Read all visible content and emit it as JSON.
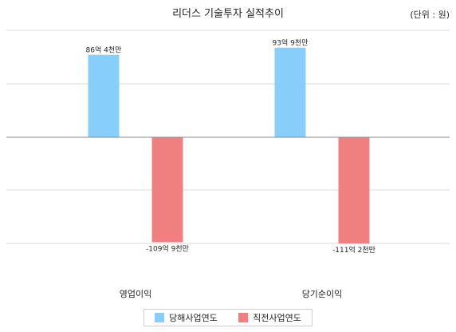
{
  "title": "리더스 기술투자 실적추이",
  "unit_label": "(단위 : 원)",
  "colors": {
    "current": "#87CEFA",
    "previous": "#F08080",
    "grid": "#d9d9d9",
    "axis": "#888888"
  },
  "chart_data": {
    "type": "bar",
    "title": "리더스 기술투자 실적추이",
    "categories": [
      "영업이익",
      "당기순이익"
    ],
    "series": [
      {
        "name": "당해사업연도",
        "values": [
          8640000000,
          9390000000
        ],
        "labels": [
          "86억 4천만",
          "93억 9천만"
        ]
      },
      {
        "name": "직전사업연도",
        "values": [
          -10990000000,
          -11120000000
        ],
        "labels": [
          "-109억 9천만",
          "-111억 2천만"
        ]
      }
    ],
    "ylim": [
      -11120000000,
      11120000000
    ],
    "grid": true,
    "legend_position": "bottom"
  }
}
